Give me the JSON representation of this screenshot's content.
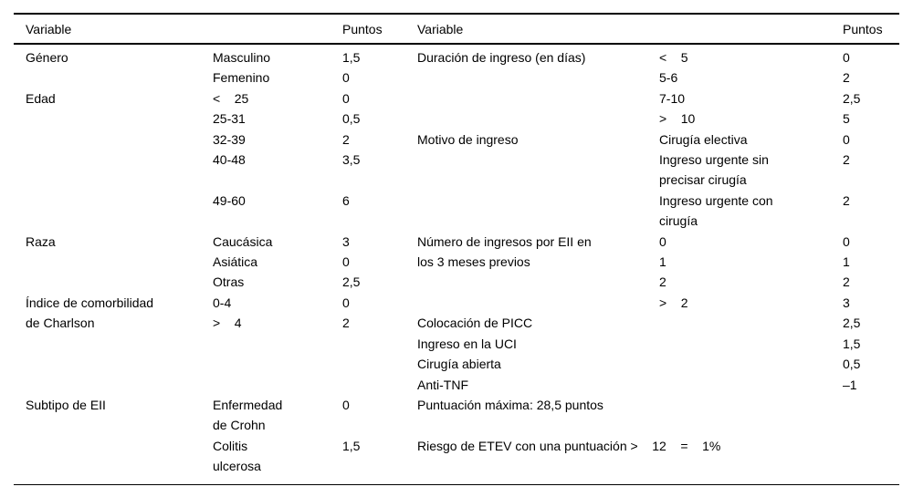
{
  "table": {
    "header": [
      "Variable",
      "",
      "Puntos",
      "Variable",
      "",
      "Puntos"
    ],
    "rows": [
      [
        "Género",
        "Masculino",
        "1,5",
        "Duración de ingreso (en días)",
        "<    5",
        "0"
      ],
      [
        "",
        "Femenino",
        "0",
        "",
        "5-6",
        "2"
      ],
      [
        "Edad",
        "<    25",
        "0",
        "",
        "7-10",
        "2,5"
      ],
      [
        "",
        "25-31",
        "0,5",
        "",
        ">    10",
        "5"
      ],
      [
        "",
        "32-39",
        "2",
        "Motivo de ingreso",
        "Cirugía electiva",
        "0"
      ],
      [
        "",
        "40-48",
        "3,5",
        "",
        "Ingreso urgente sin",
        "2"
      ],
      [
        "",
        "",
        "",
        "",
        "precisar cirugía",
        ""
      ],
      [
        "",
        "49-60",
        "6",
        "",
        "Ingreso urgente con",
        "2"
      ],
      [
        "",
        "",
        "",
        "",
        "cirugía",
        ""
      ],
      [
        "Raza",
        "Caucásica",
        "3",
        "Número de ingresos por EII en",
        "0",
        "0"
      ],
      [
        "",
        "Asiática",
        "0",
        "los 3 meses previos",
        "1",
        "1"
      ],
      [
        "",
        "Otras",
        "2,5",
        "",
        "2",
        "2"
      ],
      [
        "Índice de comorbilidad",
        "0-4",
        "0",
        "",
        ">    2",
        "3"
      ],
      [
        "de Charlson",
        ">    4",
        "2",
        "Colocación de PICC",
        "",
        "2,5"
      ],
      [
        "",
        "",
        "",
        "Ingreso en la UCI",
        "",
        "1,5"
      ],
      [
        "",
        "",
        "",
        "Cirugía abierta",
        "",
        "0,5"
      ],
      [
        "",
        "",
        "",
        "Anti-TNF",
        "",
        "–1"
      ],
      [
        "Subtipo de EII",
        "Enfermedad",
        "0",
        "Puntuación máxima: 28,5 puntos",
        "",
        ""
      ],
      [
        "",
        "de Crohn",
        "",
        "",
        "",
        ""
      ],
      [
        "",
        "Colitis",
        "1,5",
        "Riesgo de ETEV con una puntuación >    12    =    1%",
        "",
        ""
      ],
      [
        "",
        "ulcerosa",
        "",
        "",
        "",
        ""
      ]
    ]
  },
  "colors": {
    "text": "#000000",
    "background": "#ffffff",
    "rule": "#000000"
  }
}
